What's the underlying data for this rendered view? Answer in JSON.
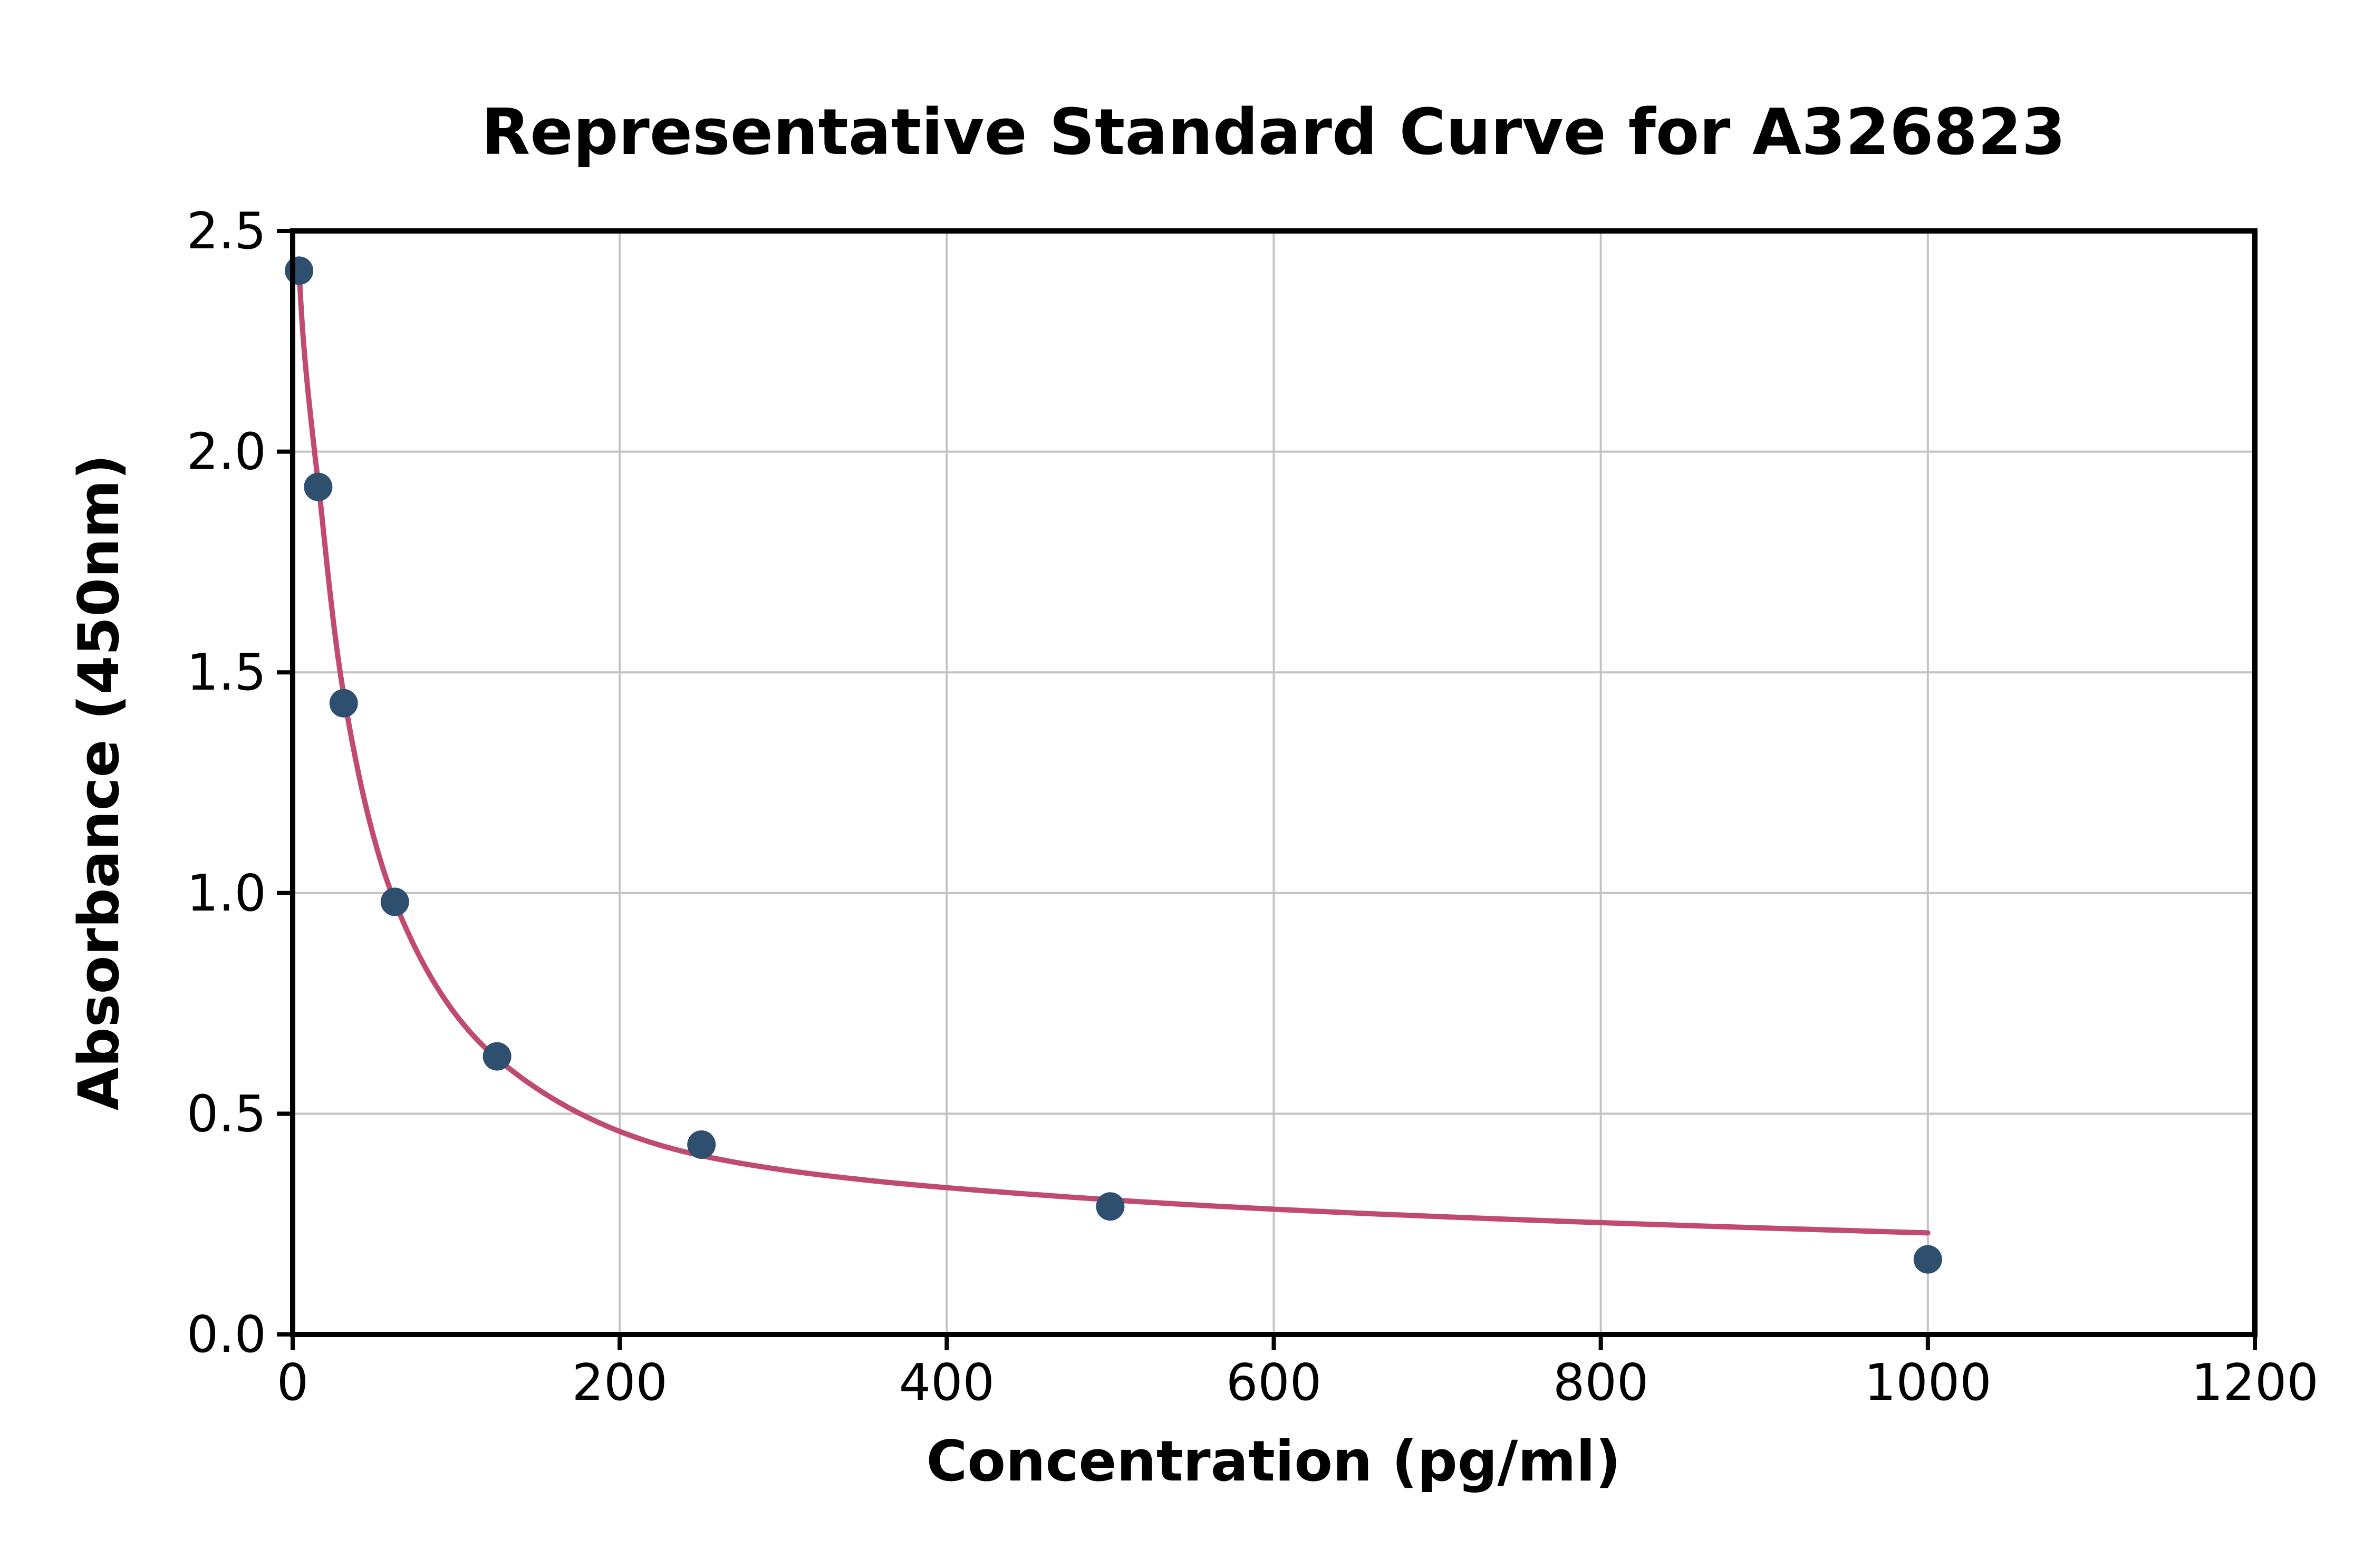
{
  "chart_data": {
    "type": "scatter",
    "title": "Representative Standard Curve for A326823",
    "xlabel": "Concentration (pg/ml)",
    "ylabel": "Absorbance (450nm)",
    "xlim": [
      0,
      1200
    ],
    "ylim": [
      0,
      2.5
    ],
    "x_ticks": [
      0,
      200,
      400,
      600,
      800,
      1000,
      1200
    ],
    "y_ticks": [
      0,
      0.5,
      1,
      1.5,
      2,
      2.5
    ],
    "grid": true,
    "points": {
      "x": [
        3.9,
        15.6,
        31.2,
        62.5,
        125,
        250,
        500,
        1000
      ],
      "y": [
        2.41,
        1.92,
        1.43,
        0.98,
        0.63,
        0.43,
        0.29,
        0.17
      ]
    },
    "fit_curve": {
      "x": [
        3.9,
        15.6,
        31.2,
        62.5,
        125,
        250,
        500,
        1000
      ],
      "y": [
        2.42,
        1.93,
        1.45,
        0.98,
        0.625,
        0.405,
        0.305,
        0.23
      ]
    },
    "colors": {
      "points": "#2f4f6f",
      "curve": "#c04a70",
      "grid": "#c3c3c3",
      "axis": "#000000",
      "background": "#ffffff"
    }
  }
}
